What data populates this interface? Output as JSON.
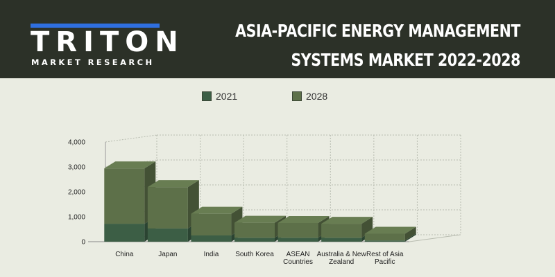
{
  "header": {
    "logo_text": "TRITON",
    "logo_subtext": "MARKET RESEARCH",
    "title_line1": "ASIA-PACIFIC ENERGY MANAGEMENT",
    "title_line2": "SYSTEMS MARKET 2022-2028"
  },
  "colors": {
    "header_bg": "#2c3128",
    "logo_accent": "#2f6fe0",
    "series_2021": "#3c5e45",
    "series_2028": "#5d7049",
    "page_bg": "#eaece2"
  },
  "chart_data": {
    "type": "bar",
    "stacked": true,
    "three_d": true,
    "grid": true,
    "legend_position": "top",
    "title": "",
    "xlabel": "",
    "ylabel": "",
    "ylim": [
      0,
      4000
    ],
    "yticks": [
      "4,000",
      "3,000",
      "2,000",
      "1,000",
      "0"
    ],
    "categories": [
      [
        "China"
      ],
      [
        "Japan"
      ],
      [
        "India"
      ],
      [
        "South Korea"
      ],
      [
        "ASEAN",
        "Countries"
      ],
      [
        "Australia & New",
        "Zealand"
      ],
      [
        "Rest of Asia",
        "Pacific"
      ]
    ],
    "series": [
      {
        "name": "2021",
        "values": [
          720,
          530,
          250,
          160,
          160,
          160,
          50
        ]
      },
      {
        "name": "2028",
        "values": [
          2220,
          1660,
          870,
          600,
          590,
          560,
          270
        ]
      }
    ]
  }
}
